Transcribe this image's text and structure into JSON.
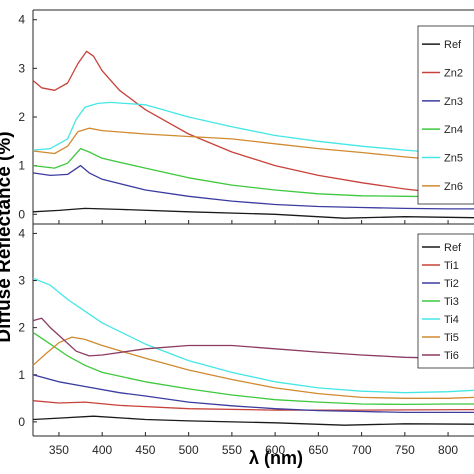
{
  "chart_data": [
    {
      "type": "line",
      "xlabel": "λ (nm)",
      "ylabel": "Diffuse Reflectance (%)",
      "xlim": [
        320,
        830
      ],
      "ylim": [
        -0.2,
        4.2
      ],
      "xticks": [
        "350",
        "400",
        "450",
        "500",
        "550",
        "600",
        "650",
        "700",
        "750",
        "800"
      ],
      "yticks": [
        "0",
        "1",
        "2",
        "3",
        "4"
      ],
      "legend_position": "top-right",
      "series": [
        {
          "name": "Ref",
          "color": "#1a1a1a",
          "x": [
            320,
            350,
            380,
            420,
            500,
            600,
            680,
            750,
            830
          ],
          "y": [
            0.05,
            0.08,
            0.12,
            0.1,
            0.05,
            0.0,
            -0.08,
            -0.05,
            -0.07
          ]
        },
        {
          "name": "Zn2",
          "color": "#c8413a",
          "x": [
            320,
            330,
            345,
            360,
            372,
            382,
            390,
            400,
            420,
            450,
            500,
            550,
            600,
            650,
            700,
            750,
            800,
            830
          ],
          "y": [
            2.75,
            2.6,
            2.55,
            2.7,
            3.1,
            3.35,
            3.25,
            2.95,
            2.55,
            2.15,
            1.65,
            1.28,
            1.0,
            0.8,
            0.65,
            0.52,
            0.42,
            0.37
          ]
        },
        {
          "name": "Zn3",
          "color": "#3c3ca0",
          "x": [
            320,
            340,
            360,
            375,
            385,
            400,
            450,
            500,
            550,
            600,
            650,
            700,
            750,
            800,
            830
          ],
          "y": [
            0.85,
            0.8,
            0.82,
            1.0,
            0.85,
            0.72,
            0.5,
            0.37,
            0.27,
            0.2,
            0.16,
            0.14,
            0.12,
            0.11,
            0.11
          ]
        },
        {
          "name": "Zn4",
          "color": "#3ec83e",
          "x": [
            320,
            345,
            360,
            375,
            385,
            400,
            450,
            500,
            550,
            600,
            650,
            700,
            750,
            800,
            830
          ],
          "y": [
            1.0,
            0.95,
            1.05,
            1.35,
            1.28,
            1.15,
            0.95,
            0.75,
            0.6,
            0.5,
            0.42,
            0.38,
            0.37,
            0.36,
            0.37
          ]
        },
        {
          "name": "Zn5",
          "color": "#45e6e6",
          "x": [
            320,
            340,
            360,
            370,
            380,
            395,
            410,
            450,
            500,
            550,
            600,
            650,
            700,
            750,
            800,
            830
          ],
          "y": [
            1.32,
            1.35,
            1.55,
            1.95,
            2.2,
            2.28,
            2.3,
            2.25,
            2.0,
            1.8,
            1.62,
            1.5,
            1.4,
            1.32,
            1.25,
            1.22
          ]
        },
        {
          "name": "Zn6",
          "color": "#d08a30",
          "x": [
            320,
            345,
            360,
            372,
            385,
            400,
            450,
            500,
            550,
            600,
            650,
            700,
            750,
            800,
            830
          ],
          "y": [
            1.3,
            1.25,
            1.4,
            1.7,
            1.77,
            1.72,
            1.65,
            1.6,
            1.55,
            1.45,
            1.35,
            1.27,
            1.18,
            1.1,
            1.05
          ]
        }
      ]
    },
    {
      "type": "line",
      "xlabel": "λ (nm)",
      "ylabel": "Diffuse Reflectance (%)",
      "xlim": [
        320,
        830
      ],
      "ylim": [
        -0.3,
        4.2
      ],
      "xticks": [
        "350",
        "400",
        "450",
        "500",
        "550",
        "600",
        "650",
        "700",
        "750",
        "800"
      ],
      "yticks": [
        "0",
        "1",
        "2",
        "3",
        "4"
      ],
      "legend_position": "top-right",
      "series": [
        {
          "name": "Ref",
          "color": "#1a1a1a",
          "x": [
            320,
            350,
            390,
            450,
            500,
            600,
            680,
            750,
            830
          ],
          "y": [
            0.05,
            0.08,
            0.12,
            0.05,
            0.02,
            -0.02,
            -0.07,
            -0.04,
            -0.05
          ]
        },
        {
          "name": "Ti1",
          "color": "#c8413a",
          "x": [
            320,
            350,
            380,
            420,
            500,
            600,
            700,
            830
          ],
          "y": [
            0.45,
            0.4,
            0.42,
            0.35,
            0.28,
            0.25,
            0.25,
            0.26
          ]
        },
        {
          "name": "Ti2",
          "color": "#3c3ca0",
          "x": [
            320,
            350,
            380,
            420,
            450,
            500,
            550,
            600,
            650,
            700,
            750,
            800,
            830
          ],
          "y": [
            1.0,
            0.85,
            0.75,
            0.62,
            0.55,
            0.42,
            0.34,
            0.28,
            0.24,
            0.22,
            0.2,
            0.2,
            0.2
          ]
        },
        {
          "name": "Ti3",
          "color": "#3ec83e",
          "x": [
            320,
            340,
            360,
            380,
            400,
            450,
            500,
            550,
            600,
            650,
            700,
            750,
            800,
            830
          ],
          "y": [
            1.9,
            1.65,
            1.4,
            1.2,
            1.05,
            0.85,
            0.7,
            0.57,
            0.47,
            0.42,
            0.38,
            0.37,
            0.38,
            0.38
          ]
        },
        {
          "name": "Ti4",
          "color": "#45e6e6",
          "x": [
            320,
            340,
            360,
            380,
            400,
            450,
            500,
            550,
            600,
            650,
            700,
            750,
            800,
            830
          ],
          "y": [
            3.05,
            2.9,
            2.6,
            2.35,
            2.1,
            1.65,
            1.3,
            1.05,
            0.85,
            0.72,
            0.65,
            0.62,
            0.64,
            0.67
          ]
        },
        {
          "name": "Ti5",
          "color": "#d08a30",
          "x": [
            320,
            335,
            350,
            365,
            380,
            400,
            450,
            500,
            550,
            600,
            650,
            700,
            750,
            800,
            830
          ],
          "y": [
            1.2,
            1.45,
            1.68,
            1.8,
            1.75,
            1.62,
            1.35,
            1.1,
            0.9,
            0.72,
            0.6,
            0.52,
            0.5,
            0.5,
            0.52
          ]
        },
        {
          "name": "Ti6",
          "color": "#8c3a62",
          "x": [
            320,
            330,
            340,
            355,
            370,
            385,
            400,
            450,
            500,
            550,
            600,
            650,
            700,
            750,
            800,
            830
          ],
          "y": [
            2.15,
            2.2,
            2.0,
            1.75,
            1.5,
            1.4,
            1.42,
            1.55,
            1.62,
            1.62,
            1.55,
            1.48,
            1.42,
            1.37,
            1.35,
            1.35
          ]
        }
      ]
    }
  ]
}
